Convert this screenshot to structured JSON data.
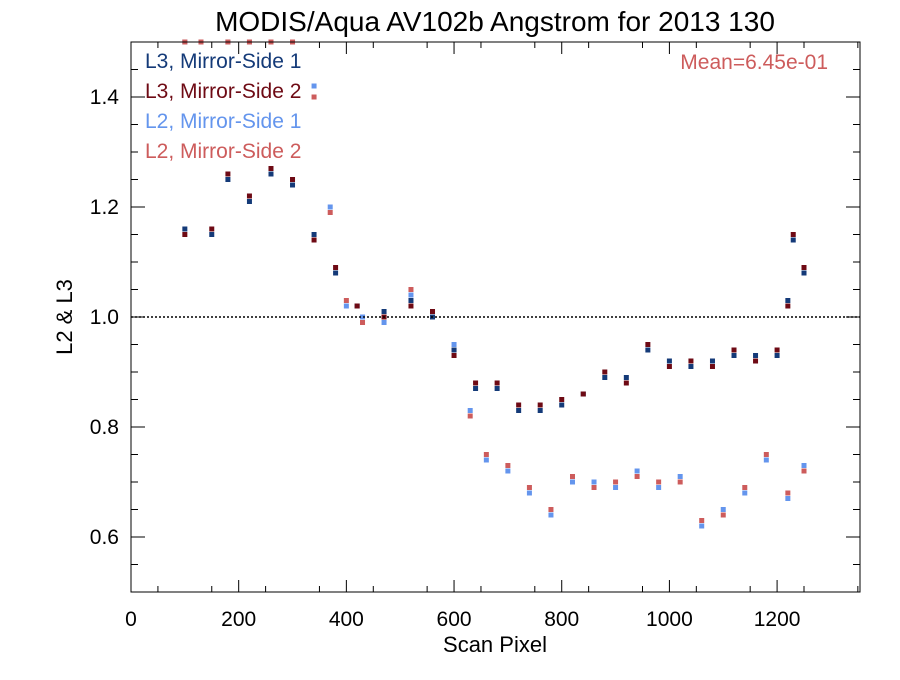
{
  "chart_data": {
    "type": "scatter",
    "title": "MODIS/Aqua AV102b Angstrom for 2013 130",
    "xlabel": "Scan Pixel",
    "ylabel": "L2 & L3",
    "xlim": [
      0,
      1354
    ],
    "ylim": [
      0.5,
      1.5
    ],
    "x_ticks": [
      0,
      200,
      400,
      600,
      800,
      1000,
      1200
    ],
    "y_ticks": [
      0.6,
      0.8,
      1.0,
      1.2,
      1.4
    ],
    "x_tick_labels": [
      "0",
      "200",
      "400",
      "600",
      "800",
      "1000",
      "1200"
    ],
    "y_tick_labels": [
      "0.6",
      "0.8",
      "1.0",
      "1.2",
      "1.4"
    ],
    "reference_line": 1.0,
    "annotation": "Mean=6.45e-01",
    "legend_position": "top-left",
    "colors": {
      "L3, Mirror-Side 1": "#143a78",
      "L3, Mirror-Side 2": "#6e0a14",
      "L2, Mirror-Side 1": "#6495ed",
      "L2, Mirror-Side 2": "#cd5c5c",
      "annotation": "#cd5c5c"
    },
    "x_range": [
      100,
      1250
    ],
    "series": [
      {
        "name": "L3, Mirror-Side 1",
        "x": [
          100,
          150,
          180,
          220,
          260,
          300,
          340,
          380,
          420,
          470,
          520,
          560,
          600,
          640,
          680,
          720,
          760,
          800,
          840,
          880,
          920,
          960,
          1000,
          1040,
          1080,
          1120,
          1160,
          1200,
          1220,
          1230,
          1250
        ],
        "y": [
          1.16,
          1.15,
          1.25,
          1.21,
          1.26,
          1.24,
          1.15,
          1.08,
          1.02,
          1.01,
          1.03,
          1.0,
          0.94,
          0.87,
          0.87,
          0.83,
          0.83,
          0.84,
          0.86,
          0.89,
          0.89,
          0.94,
          0.92,
          0.91,
          0.92,
          0.93,
          0.93,
          0.93,
          1.03,
          1.14,
          1.08
        ]
      },
      {
        "name": "L3, Mirror-Side 2",
        "x": [
          100,
          150,
          180,
          220,
          260,
          300,
          340,
          380,
          420,
          470,
          520,
          560,
          600,
          640,
          680,
          720,
          760,
          800,
          840,
          880,
          920,
          960,
          1000,
          1040,
          1080,
          1120,
          1160,
          1200,
          1220,
          1230,
          1250
        ],
        "y": [
          1.15,
          1.16,
          1.26,
          1.22,
          1.27,
          1.25,
          1.14,
          1.09,
          1.02,
          1.0,
          1.02,
          1.01,
          0.93,
          0.88,
          0.88,
          0.84,
          0.84,
          0.85,
          0.86,
          0.9,
          0.88,
          0.95,
          0.91,
          0.92,
          0.91,
          0.94,
          0.92,
          0.94,
          1.02,
          1.15,
          1.09
        ]
      },
      {
        "name": "L2, Mirror-Side 1",
        "x": [
          100,
          130,
          180,
          220,
          260,
          300,
          340,
          370,
          400,
          430,
          470,
          520,
          560,
          600,
          630,
          660,
          700,
          740,
          780,
          820,
          860,
          900,
          940,
          980,
          1020,
          1060,
          1100,
          1140,
          1180,
          1220,
          1250
        ],
        "y": [
          1.5,
          1.5,
          1.5,
          1.5,
          1.5,
          1.5,
          1.42,
          1.2,
          1.02,
          1.0,
          0.99,
          1.04,
          1.0,
          0.95,
          0.83,
          0.74,
          0.72,
          0.68,
          0.64,
          0.7,
          0.7,
          0.69,
          0.72,
          0.69,
          0.71,
          0.62,
          0.65,
          0.68,
          0.74,
          0.67,
          0.73
        ]
      },
      {
        "name": "L2, Mirror-Side 2",
        "x": [
          100,
          130,
          180,
          220,
          260,
          300,
          340,
          370,
          400,
          430,
          470,
          520,
          560,
          600,
          630,
          660,
          700,
          740,
          780,
          820,
          860,
          900,
          940,
          980,
          1020,
          1060,
          1100,
          1140,
          1180,
          1220,
          1250
        ],
        "y": [
          1.5,
          1.5,
          1.5,
          1.5,
          1.5,
          1.5,
          1.4,
          1.19,
          1.03,
          0.99,
          1.0,
          1.05,
          1.01,
          0.94,
          0.82,
          0.75,
          0.73,
          0.69,
          0.65,
          0.71,
          0.69,
          0.7,
          0.71,
          0.7,
          0.7,
          0.63,
          0.64,
          0.69,
          0.75,
          0.68,
          0.72
        ]
      }
    ]
  }
}
